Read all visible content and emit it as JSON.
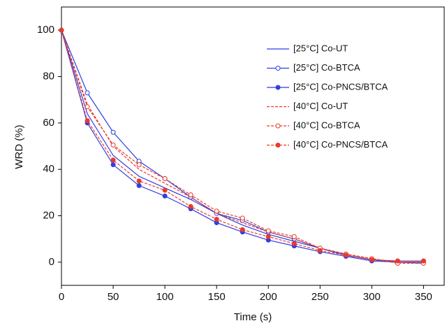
{
  "chart_data": {
    "type": "line",
    "x_label": "Time (s)",
    "y_label": "WRD (%)",
    "xlim": [
      0,
      370
    ],
    "ylim": [
      -10,
      110
    ],
    "xticks": [
      0,
      50,
      100,
      150,
      200,
      250,
      300,
      350
    ],
    "yticks": [
      0,
      20,
      40,
      60,
      80,
      100
    ],
    "x": [
      0,
      25,
      50,
      75,
      100,
      125,
      150,
      175,
      200,
      225,
      250,
      275,
      300,
      325,
      350
    ],
    "series": [
      {
        "name": "[25°C] Co-UT",
        "color": "#2f3fe0",
        "dash": false,
        "marker": "none",
        "values": [
          100,
          64,
          46,
          37,
          32,
          27,
          21,
          16,
          12,
          9,
          6,
          3,
          1,
          0,
          -0.5
        ]
      },
      {
        "name": "[25°C] Co-BTCA",
        "color": "#2f3fe0",
        "dash": false,
        "marker": "open",
        "values": [
          100,
          73,
          56,
          43.5,
          36,
          28,
          21,
          18,
          13,
          10,
          6,
          3,
          1,
          0.5,
          0.5
        ]
      },
      {
        "name": "[25°C] Co-PNCS/BTCA",
        "color": "#2f3fe0",
        "dash": false,
        "marker": "filled",
        "values": [
          100,
          60,
          42,
          33,
          28.5,
          23,
          17,
          13,
          9.5,
          7,
          4.5,
          2.5,
          0.5,
          0,
          0
        ]
      },
      {
        "name": "[40°C] Co-UT",
        "color": "#e83a2a",
        "dash": true,
        "marker": "none",
        "values": [
          100,
          68,
          50,
          40,
          34,
          28,
          21,
          17,
          13,
          10,
          6,
          3.5,
          1.5,
          0,
          -0.5
        ]
      },
      {
        "name": "[40°C] Co-BTCA",
        "color": "#e83a2a",
        "dash": true,
        "marker": "open",
        "values": [
          100,
          67,
          50.5,
          42,
          36,
          29,
          22,
          19,
          13.5,
          11,
          6,
          3.5,
          1.5,
          -0.5,
          -0.5
        ]
      },
      {
        "name": "[40°C] Co-PNCS/BTCA",
        "color": "#e83a2a",
        "dash": true,
        "marker": "filled",
        "values": [
          100,
          61,
          44,
          35,
          31,
          24,
          18.5,
          14,
          11,
          8,
          5,
          3,
          1,
          0.5,
          0.5
        ]
      }
    ]
  }
}
